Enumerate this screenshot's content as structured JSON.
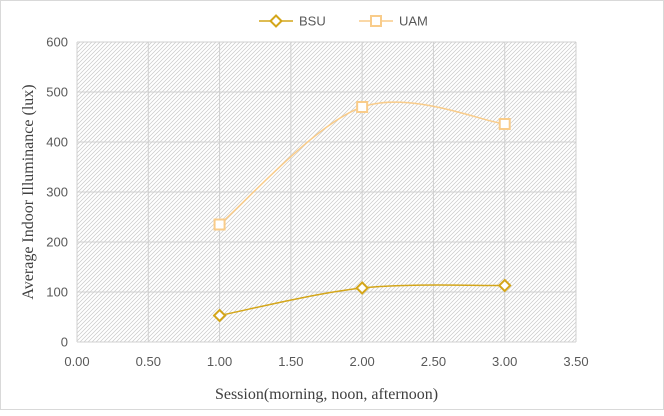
{
  "chart_data": {
    "type": "line",
    "title": "",
    "xlabel": "Session(morning, noon, afternoon)",
    "ylabel": "Average Indoor  Illuminance (lux)",
    "xlim": [
      0,
      3.5
    ],
    "ylim": [
      0,
      600
    ],
    "x_ticks": [
      "0.00",
      "0.50",
      "1.00",
      "1.50",
      "2.00",
      "2.50",
      "3.00",
      "3.50"
    ],
    "y_ticks": [
      "0",
      "100",
      "200",
      "300",
      "400",
      "500",
      "600"
    ],
    "grid": true,
    "legend_position": "top-center",
    "smooth": true,
    "series": [
      {
        "name": "BSU",
        "color": "#d4a61a",
        "marker": "diamond",
        "x": [
          1,
          2,
          3
        ],
        "values": [
          53,
          108,
          113
        ]
      },
      {
        "name": "UAM",
        "color": "#f9cc8a",
        "marker": "square",
        "x": [
          1,
          2,
          3
        ],
        "values": [
          235,
          470,
          436
        ]
      }
    ]
  }
}
